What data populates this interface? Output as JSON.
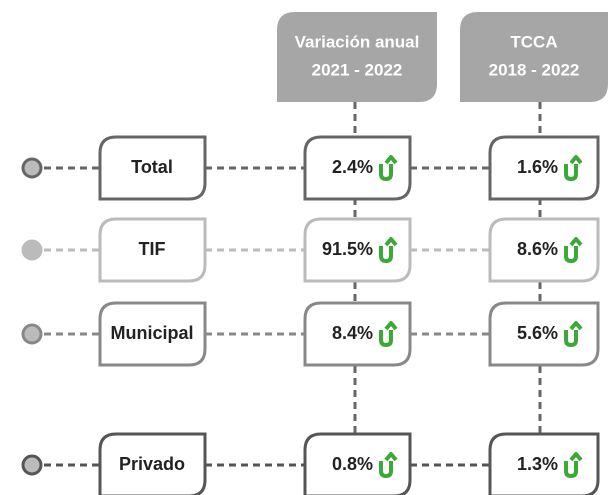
{
  "columns": [
    {
      "lines": [
        "Variación anual",
        "2021 - 2022"
      ]
    },
    {
      "lines": [
        "TCCA",
        "2018 - 2022"
      ]
    }
  ],
  "rows": [
    {
      "label": "Total",
      "values": [
        "2.4%",
        "1.6%"
      ]
    },
    {
      "label": "TIF",
      "values": [
        "91.5%",
        "8.6%"
      ]
    },
    {
      "label": "Municipal",
      "values": [
        "8.4%",
        "5.6%"
      ]
    },
    {
      "label": "Privado",
      "values": [
        "0.8%",
        "1.3%"
      ]
    }
  ]
}
